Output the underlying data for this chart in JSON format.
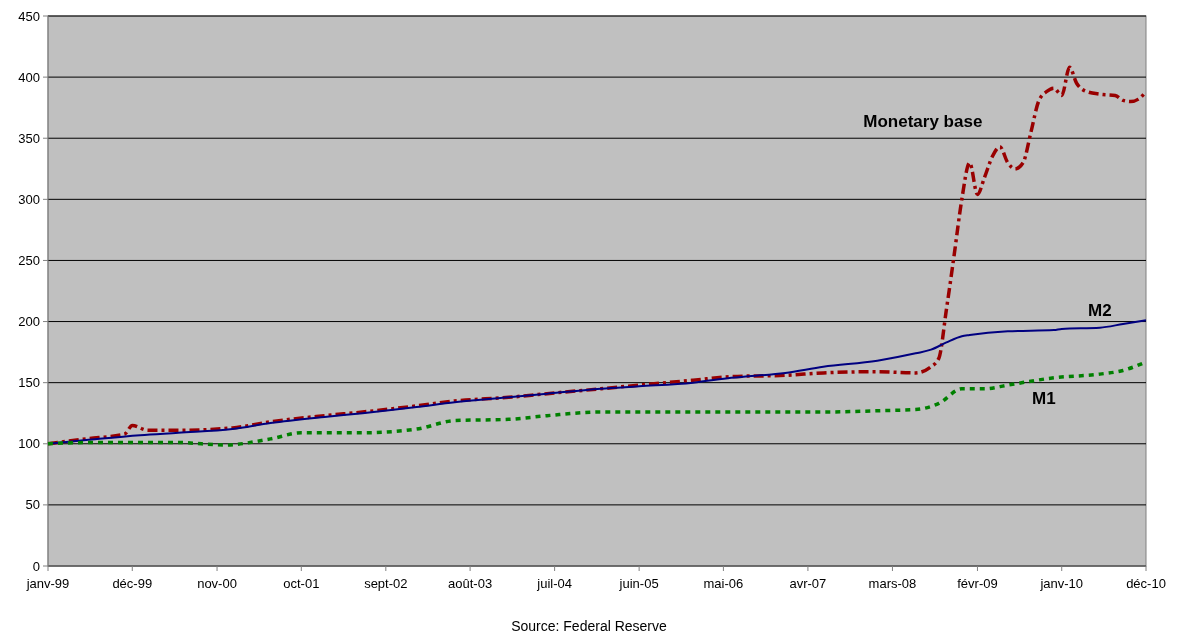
{
  "chart_data": {
    "type": "line",
    "annotations": [
      "Source: Federal Reserve"
    ],
    "xlim": [
      "1999-01",
      "2010-12"
    ],
    "xticks": [
      {
        "value": "1999-01",
        "label": "janv-99"
      },
      {
        "value": "1999-12",
        "label": "déc-99"
      },
      {
        "value": "2000-11",
        "label": "nov-00"
      },
      {
        "value": "2001-10",
        "label": "oct-01"
      },
      {
        "value": "2002-09",
        "label": "sept-02"
      },
      {
        "value": "2003-08",
        "label": "août-03"
      },
      {
        "value": "2004-07",
        "label": "juil-04"
      },
      {
        "value": "2005-06",
        "label": "juin-05"
      },
      {
        "value": "2006-05",
        "label": "mai-06"
      },
      {
        "value": "2007-04",
        "label": "avr-07"
      },
      {
        "value": "2008-03",
        "label": "mars-08"
      },
      {
        "value": "2009-02",
        "label": "févr-09"
      },
      {
        "value": "2010-01",
        "label": "janv-10"
      },
      {
        "value": "2010-12",
        "label": "déc-10"
      }
    ],
    "ylim": [
      0,
      450
    ],
    "yticks": [
      0,
      50,
      100,
      150,
      200,
      250,
      300,
      350,
      400,
      450
    ],
    "grid": "y",
    "legend": false,
    "marker": "none",
    "series": [
      {
        "name": "Monetary base",
        "color": "#990000",
        "line_style": "dashed",
        "x": [
          "1999-01",
          "1999-06",
          "1999-11",
          "1999-12",
          "2000-02",
          "2000-06",
          "2001-01",
          "2001-06",
          "2002-01",
          "2002-06",
          "2003-01",
          "2003-06",
          "2004-01",
          "2004-06",
          "2005-01",
          "2005-06",
          "2006-01",
          "2006-06",
          "2007-01",
          "2007-06",
          "2008-01",
          "2008-06",
          "2008-08",
          "2008-09",
          "2008-10",
          "2008-11",
          "2008-12",
          "2009-01",
          "2009-02",
          "2009-03",
          "2009-04",
          "2009-05",
          "2009-06",
          "2009-07",
          "2009-08",
          "2009-09",
          "2009-10",
          "2009-11",
          "2009-12",
          "2010-01",
          "2010-02",
          "2010-03",
          "2010-04",
          "2010-06",
          "2010-08",
          "2010-09",
          "2010-10",
          "2010-11",
          "2010-12"
        ],
        "values": [
          100,
          104,
          108,
          115,
          111,
          111,
          113,
          118,
          123,
          126,
          131,
          135,
          138,
          141,
          145,
          148,
          152,
          155,
          156,
          158,
          159,
          158,
          163,
          170,
          210,
          255,
          300,
          330,
          304,
          318,
          335,
          343,
          330,
          325,
          330,
          355,
          380,
          388,
          391,
          385,
          408,
          395,
          389,
          386,
          385,
          381,
          380,
          382,
          388
        ]
      },
      {
        "name": "M2",
        "color": "#000080",
        "line_style": "solid",
        "x": [
          "1999-01",
          "1999-06",
          "2000-01",
          "2000-06",
          "2001-01",
          "2001-06",
          "2002-01",
          "2002-06",
          "2003-01",
          "2003-06",
          "2004-01",
          "2004-06",
          "2005-01",
          "2005-06",
          "2006-01",
          "2006-06",
          "2007-01",
          "2007-06",
          "2008-01",
          "2008-06",
          "2008-08",
          "2008-10",
          "2008-12",
          "2009-01",
          "2009-06",
          "2009-12",
          "2010-01",
          "2010-06",
          "2010-09",
          "2010-12"
        ],
        "values": [
          100,
          103,
          107,
          109,
          112,
          117,
          122,
          125,
          130,
          134,
          138,
          141,
          145,
          147,
          150,
          154,
          158,
          163,
          168,
          174,
          177,
          183,
          188,
          189,
          192,
          193,
          194,
          195,
          198,
          201
        ]
      },
      {
        "name": "M1",
        "color": "#008000",
        "line_style": "dotted",
        "x": [
          "1999-01",
          "1999-06",
          "2000-01",
          "2000-06",
          "2000-12",
          "2001-06",
          "2001-10",
          "2002-06",
          "2003-01",
          "2003-06",
          "2004-01",
          "2004-06",
          "2005-01",
          "2005-06",
          "2006-01",
          "2006-06",
          "2007-01",
          "2007-06",
          "2008-01",
          "2008-06",
          "2008-09",
          "2008-12",
          "2009-03",
          "2009-06",
          "2009-12",
          "2010-06",
          "2010-09",
          "2010-12"
        ],
        "values": [
          100,
          101,
          101,
          101,
          99,
          104,
          109,
          109,
          112,
          119,
          120,
          123,
          126,
          126,
          126,
          126,
          126,
          126,
          127,
          128,
          133,
          145,
          145,
          148,
          154,
          157,
          160,
          167
        ]
      }
    ]
  }
}
